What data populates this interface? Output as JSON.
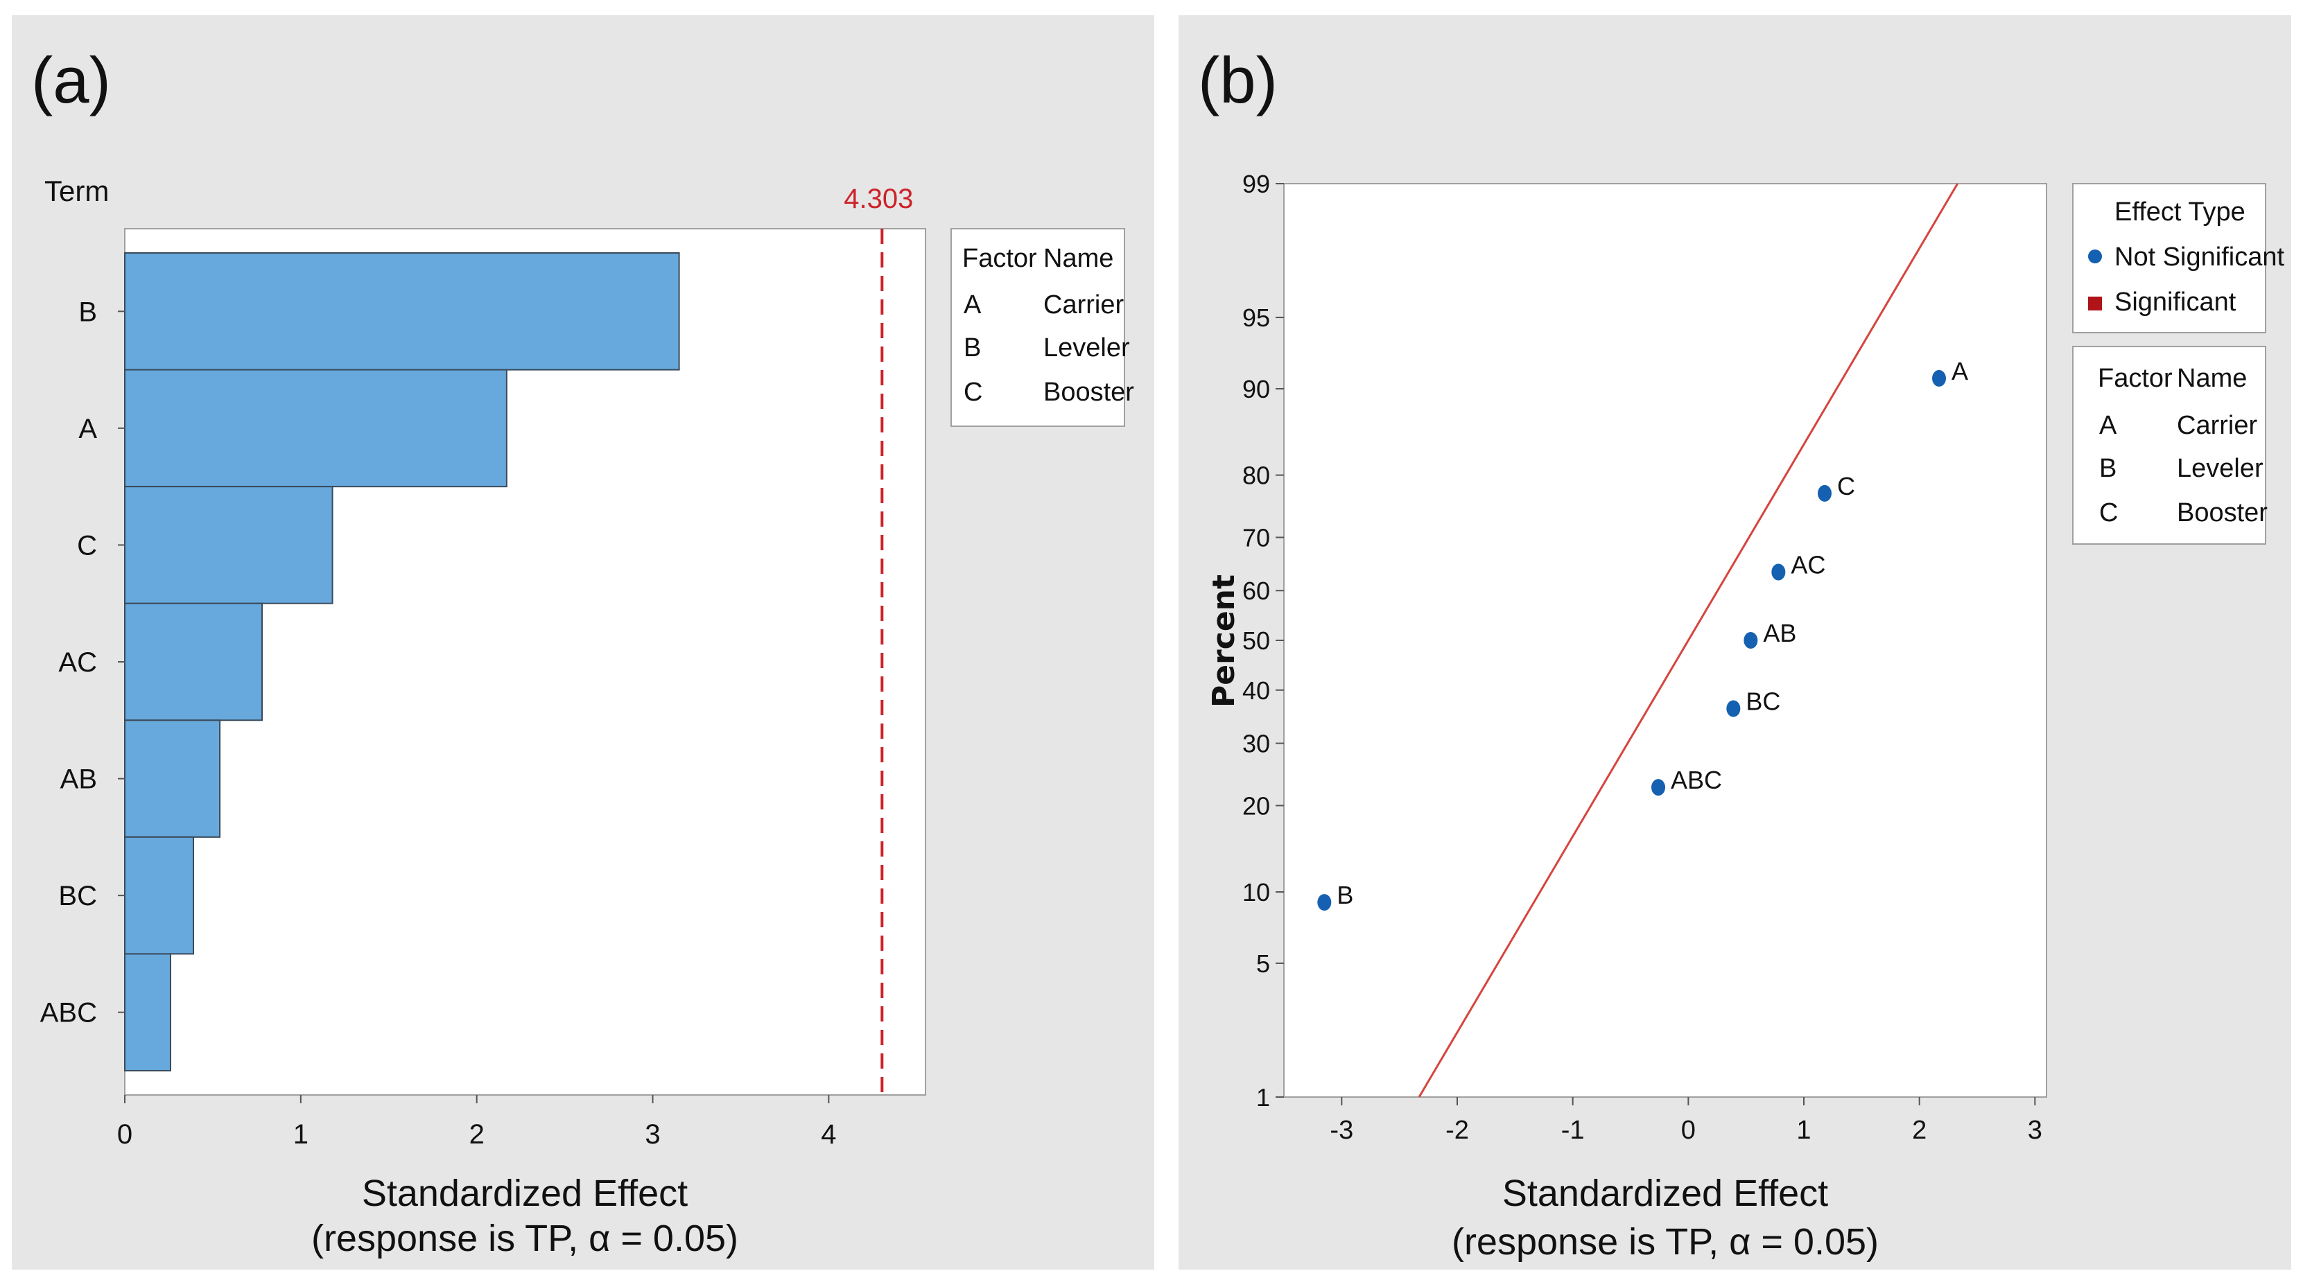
{
  "chart_data": [
    {
      "type": "bar",
      "orientation": "horizontal",
      "panel_label": "(a)",
      "term_header": "Term",
      "categories": [
        "B",
        "A",
        "C",
        "AC",
        "AB",
        "BC",
        "ABC"
      ],
      "values": [
        3.15,
        2.17,
        1.18,
        0.78,
        0.54,
        0.39,
        0.26
      ],
      "reference_line": {
        "value": 4.303,
        "label": "4.303"
      },
      "xlim": [
        0,
        4.55
      ],
      "xticks": [
        0,
        1,
        2,
        3,
        4
      ],
      "xlabel": "Standardized Effect",
      "xlabel_sub": "(response is TP, α = 0.05)",
      "bar_color": "#67a9dd",
      "ref_color": "#cc2229",
      "legend": {
        "headers": [
          "Factor",
          "Name"
        ],
        "rows": [
          [
            "A",
            "Carrier"
          ],
          [
            "B",
            "Leveler"
          ],
          [
            "C",
            "Booster"
          ]
        ]
      }
    },
    {
      "type": "scatter",
      "subtype": "normal probability plot",
      "panel_label": "(b)",
      "points": [
        {
          "label": "A",
          "x": 2.17,
          "y": 90.9
        },
        {
          "label": "C",
          "x": 1.18,
          "y": 77.3
        },
        {
          "label": "AC",
          "x": 0.78,
          "y": 63.6
        },
        {
          "label": "AB",
          "x": 0.54,
          "y": 50.0
        },
        {
          "label": "BC",
          "x": 0.39,
          "y": 36.4
        },
        {
          "label": "ABC",
          "x": -0.26,
          "y": 22.7
        },
        {
          "label": "B",
          "x": -3.15,
          "y": 9.1
        }
      ],
      "fit_line": {
        "x_at_1": -2.33,
        "x_at_99": 2.33
      },
      "xlim": [
        -3.5,
        3.1
      ],
      "xticks": [
        -3,
        -2,
        -1,
        0,
        1,
        2,
        3
      ],
      "yticks": [
        1,
        5,
        10,
        20,
        30,
        40,
        50,
        60,
        70,
        80,
        90,
        95,
        99
      ],
      "xlabel": "Standardized Effect",
      "xlabel_sub": "(response is TP, α = 0.05)",
      "ylabel": "Percent",
      "point_color": "#1560b0",
      "line_color": "#d6453f",
      "effect_legend": {
        "title": "Effect Type",
        "items": [
          {
            "label": "Not Significant",
            "color": "#1560b0",
            "shape": "circle"
          },
          {
            "label": "Significant",
            "color": "#b01318",
            "shape": "square"
          }
        ]
      },
      "legend": {
        "headers": [
          "Factor",
          "Name"
        ],
        "rows": [
          [
            "A",
            "Carrier"
          ],
          [
            "B",
            "Leveler"
          ],
          [
            "C",
            "Booster"
          ]
        ]
      }
    }
  ]
}
